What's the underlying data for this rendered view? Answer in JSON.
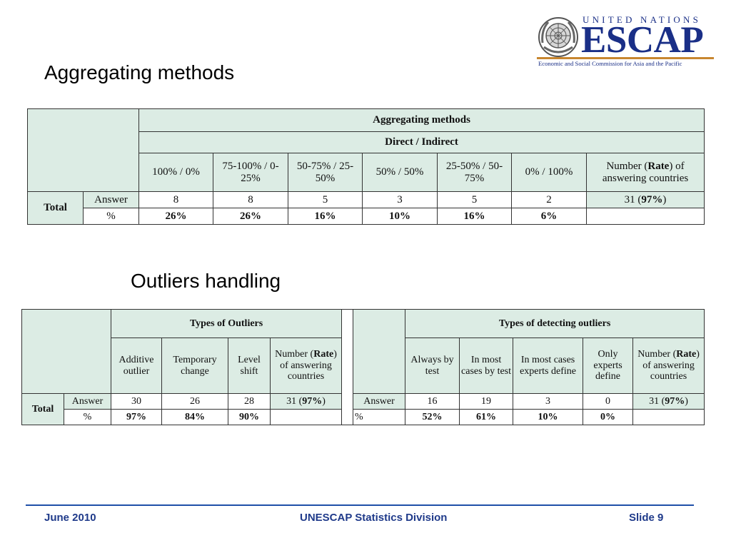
{
  "logo": {
    "top_text": "UNITED NATIONS",
    "main_text": "ESCAP",
    "subtitle": "Economic and Social Commission for Asia and the Pacific",
    "colors": {
      "navy": "#1a2f87",
      "gold": "#c8862f"
    },
    "emblem_icon": "un-emblem-icon"
  },
  "section1": {
    "title": "Aggregating methods",
    "table": {
      "header1": "Aggregating methods",
      "header2": "Direct / Indirect",
      "columns": [
        "100% / 0%",
        "75-100% / 0-25%",
        "50-75% / 25-50%",
        "50% / 50%",
        "25-50% / 50-75%",
        "0% / 100%"
      ],
      "last_column": {
        "pre": "Number (",
        "bold": "Rate",
        "post": ") of answering countries"
      },
      "row_group": "Total",
      "rows": [
        {
          "label": "Answer",
          "values": [
            "8",
            "8",
            "5",
            "3",
            "5",
            "2"
          ],
          "total": {
            "pre": "31 (",
            "bold": "97%",
            "post": ")"
          }
        },
        {
          "label": "%",
          "values": [
            "26%",
            "26%",
            "16%",
            "10%",
            "16%",
            "6%"
          ],
          "total": ""
        }
      ]
    }
  },
  "section2": {
    "title": "Outliers handling",
    "table": {
      "left_header": "Types of Outliers",
      "left_columns": [
        "Additive outlier",
        "Temporary change",
        "Level shift"
      ],
      "left_last_column": {
        "pre": "Number (",
        "bold": "Rate",
        "post": ") of answering countries"
      },
      "right_header": "Types of detecting outliers",
      "right_columns": [
        "Always by test",
        "In most cases by test",
        "In most cases experts define",
        "Only experts define"
      ],
      "right_last_column": {
        "pre": "Number (",
        "bold": "Rate",
        "post": ") of answering countries"
      },
      "row_group": "Total",
      "left_rows": [
        {
          "label": "Answer",
          "values": [
            "30",
            "26",
            "28"
          ],
          "total": {
            "pre": "31 (",
            "bold": "97%",
            "post": ")"
          }
        },
        {
          "label": "%",
          "values": [
            "97%",
            "84%",
            "90%"
          ],
          "total": ""
        }
      ],
      "right_rows": [
        {
          "label": "Answer",
          "values": [
            "16",
            "19",
            "3",
            "0"
          ],
          "total": {
            "pre": "31 (",
            "bold": "97%",
            "post": ")"
          }
        },
        {
          "label": "%",
          "values": [
            "52%",
            "61%",
            "10%",
            "0%"
          ],
          "total": ""
        }
      ]
    }
  },
  "footer": {
    "date": "June 2010",
    "organization": "UNESCAP Statistics Division",
    "slide": "Slide 9",
    "color": "#1f3a8a"
  }
}
